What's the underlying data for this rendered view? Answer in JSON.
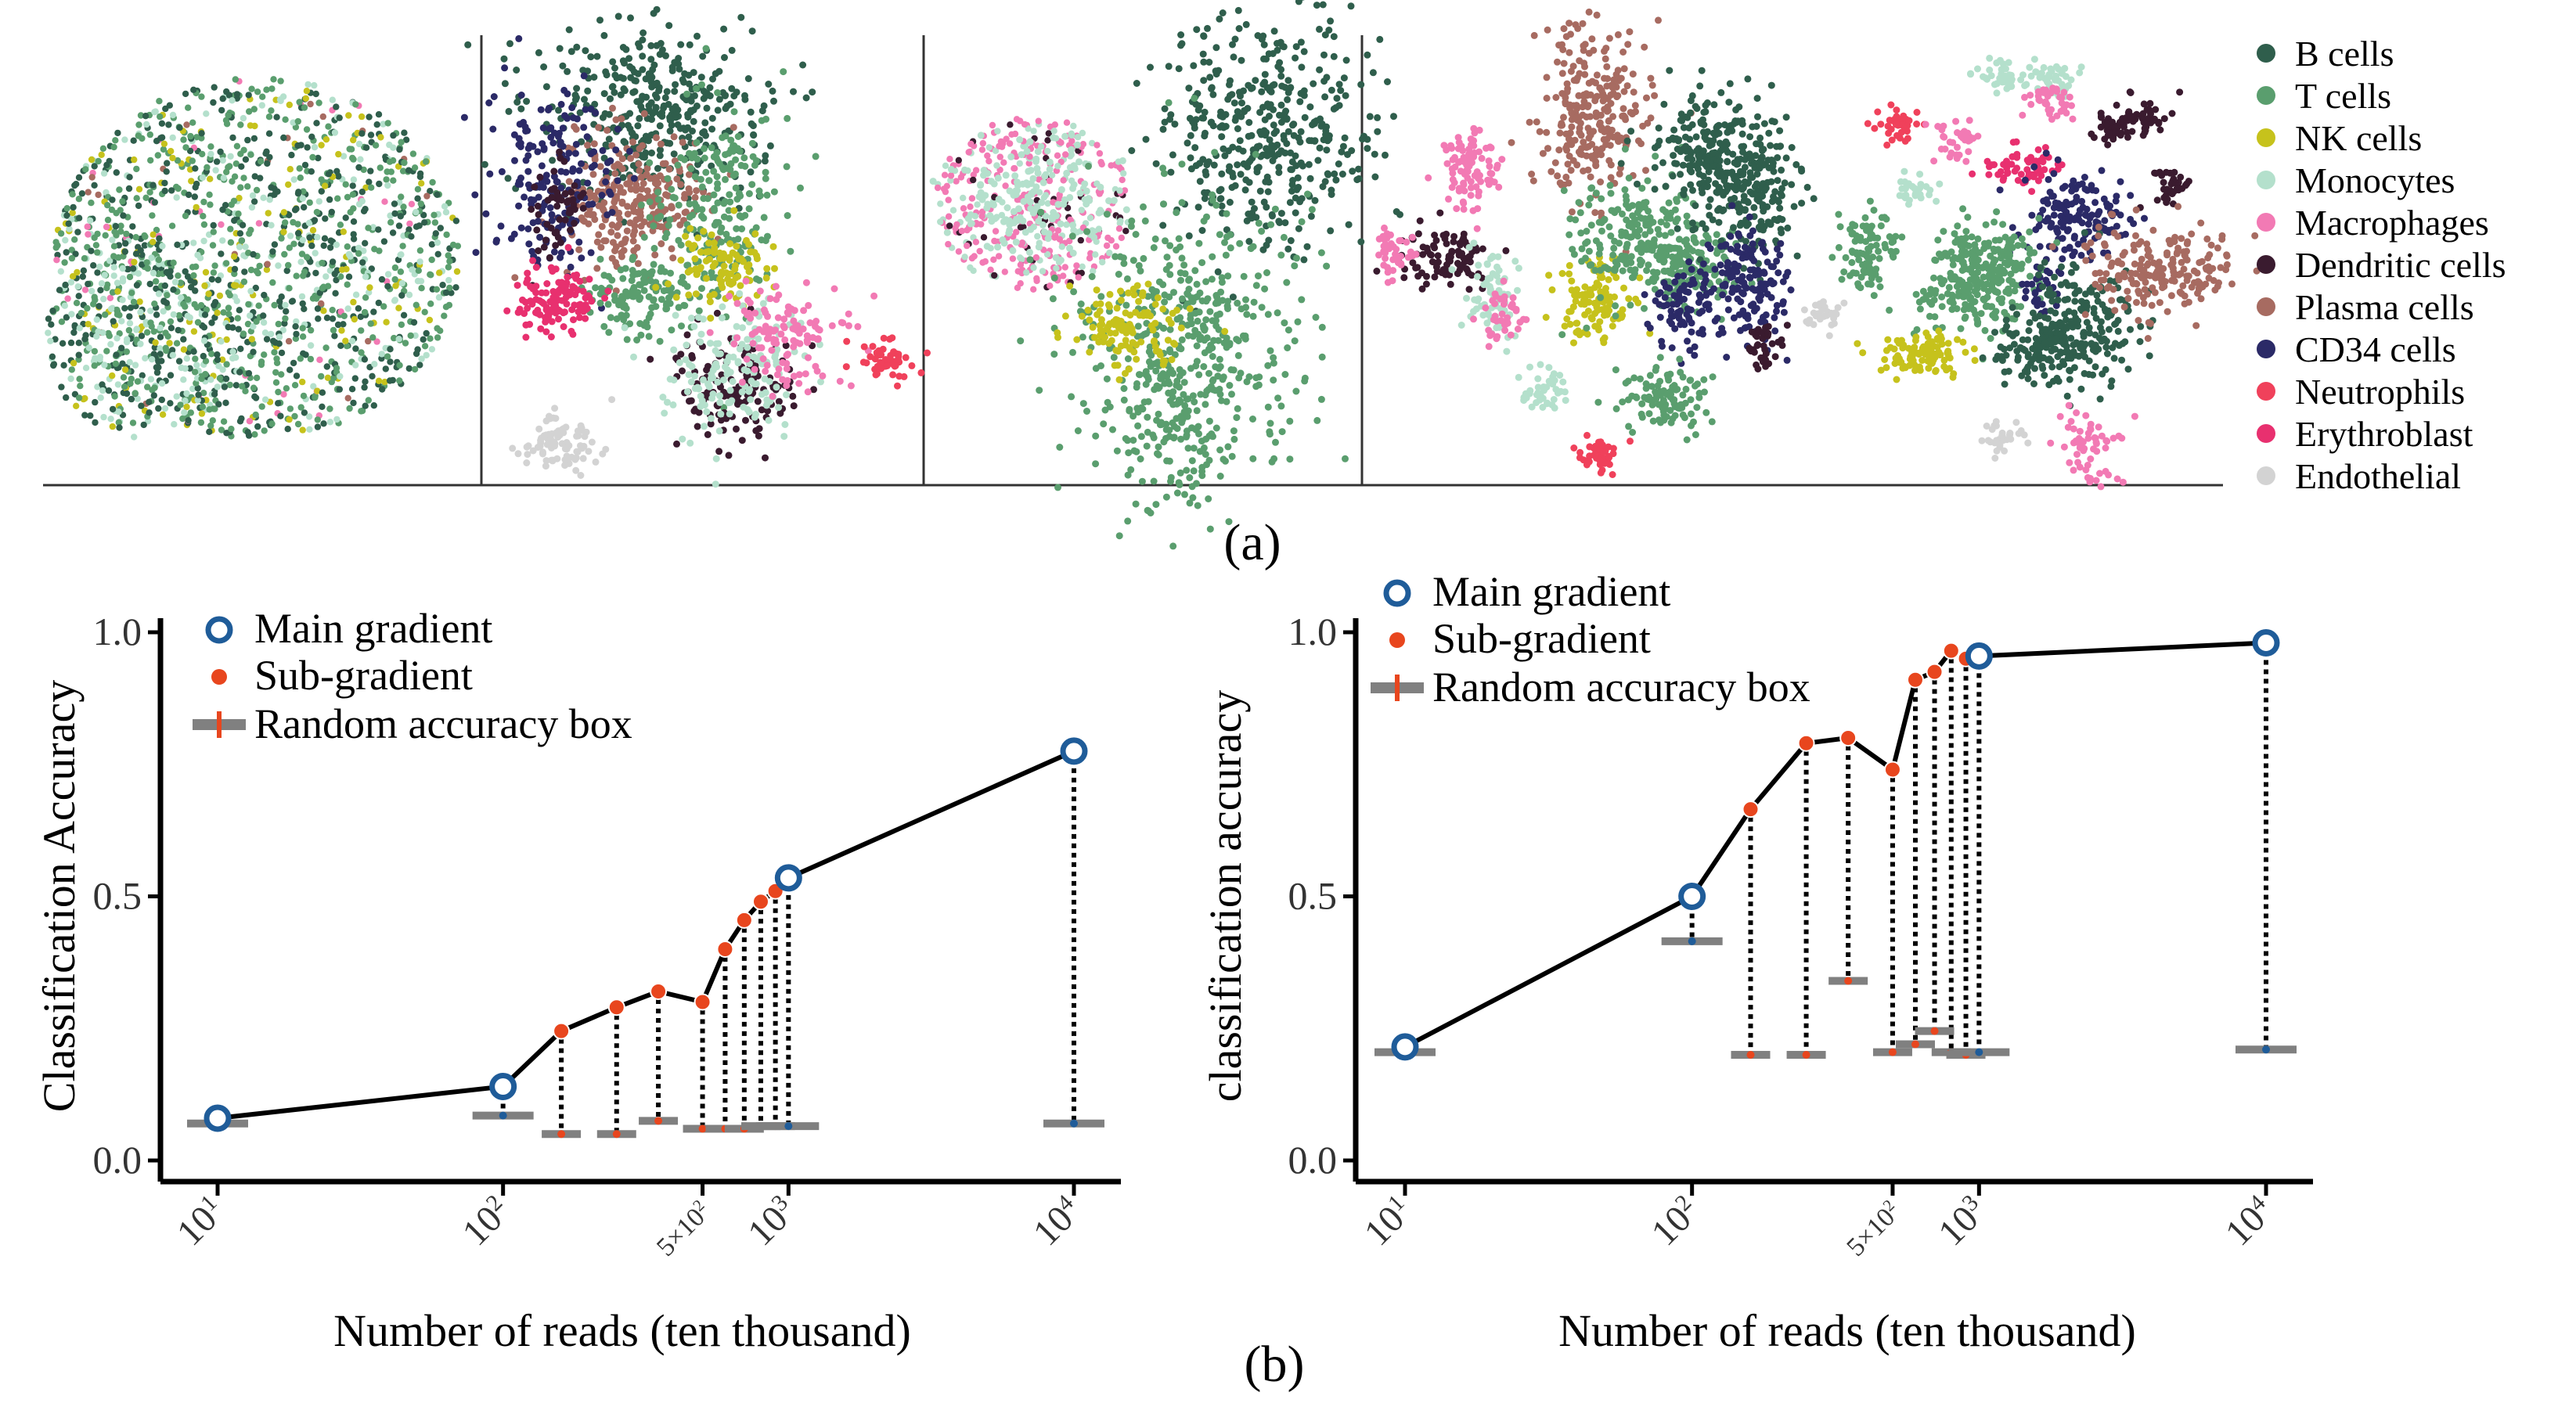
{
  "figure": {
    "label_a": "(a)",
    "label_b": "(b)"
  },
  "colors": {
    "B cells": "#2f5e4c",
    "T cells": "#5a9e6e",
    "NK cells": "#c6c21c",
    "Monocytes": "#b4e0cc",
    "Macrophages": "#f27ab4",
    "Dendritic cells": "#3a1b2f",
    "Plasma cells": "#a76b61",
    "CD34 cells": "#2b2a67",
    "Neutrophils": "#f0415b",
    "Erythroblast": "#e8306f",
    "Endothelial": "#d3d3d3",
    "main": "#1f5c99",
    "sub": "#e8461e",
    "box": "#808080",
    "line": "#000000"
  },
  "legend_a": {
    "items": [
      "B cells",
      "T cells",
      "NK cells",
      "Monocytes",
      "Macrophages",
      "Dendritic cells",
      "Plasma cells",
      "CD34 cells",
      "Neutrophils",
      "Erythroblast",
      "Endothelial"
    ]
  },
  "chart_data": [
    {
      "type": "scatter",
      "title": "(a)",
      "description_panels": 4,
      "legend": [
        "B cells",
        "T cells",
        "NK cells",
        "Monocytes",
        "Macrophages",
        "Dendritic cells",
        "Plasma cells",
        "CD34 cells",
        "Neutrophils",
        "Erythroblast",
        "Endothelial"
      ]
    },
    {
      "type": "line",
      "xlabel": "Number of reads (ten thousand)",
      "ylabel": "Classification Accuracy",
      "ylim": [
        0,
        1
      ],
      "yticks": [
        "0.0",
        "0.5",
        "1.0"
      ],
      "xscale": "log",
      "xticks": [
        {
          "value": 10,
          "label_base": "10",
          "label_sup": "1"
        },
        {
          "value": 100,
          "label_base": "10",
          "label_sup": "2"
        },
        {
          "value": 500,
          "label_base": "5×10",
          "label_sup": "2"
        },
        {
          "value": 1000,
          "label_base": "10",
          "label_sup": "3"
        },
        {
          "value": 10000,
          "label_base": "10",
          "label_sup": "4"
        }
      ],
      "legend": [
        "Main gradient",
        "Sub-gradient",
        "Random accuracy box"
      ],
      "points": [
        {
          "x": 10,
          "y": 0.08,
          "random": 0.07,
          "kind": "main"
        },
        {
          "x": 100,
          "y": 0.14,
          "random": 0.085,
          "kind": "main"
        },
        {
          "x": 160,
          "y": 0.245,
          "random": 0.05,
          "kind": "sub"
        },
        {
          "x": 250,
          "y": 0.29,
          "random": 0.05,
          "kind": "sub"
        },
        {
          "x": 350,
          "y": 0.32,
          "random": 0.075,
          "kind": "sub"
        },
        {
          "x": 500,
          "y": 0.3,
          "random": 0.06,
          "kind": "sub"
        },
        {
          "x": 600,
          "y": 0.4,
          "random": 0.06,
          "kind": "sub"
        },
        {
          "x": 700,
          "y": 0.455,
          "random": 0.06,
          "kind": "sub"
        },
        {
          "x": 800,
          "y": 0.49,
          "random": 0.065,
          "kind": "sub"
        },
        {
          "x": 900,
          "y": 0.51,
          "random": 0.065,
          "kind": "sub"
        },
        {
          "x": 1000,
          "y": 0.535,
          "random": 0.065,
          "kind": "main"
        },
        {
          "x": 10000,
          "y": 0.775,
          "random": 0.07,
          "kind": "main"
        }
      ]
    },
    {
      "type": "line",
      "xlabel": "Number of reads (ten thousand)",
      "ylabel": "classification accuracy",
      "ylim": [
        0,
        1
      ],
      "yticks": [
        "0.0",
        "0.5",
        "1.0"
      ],
      "xscale": "log",
      "xticks": [
        {
          "value": 10,
          "label_base": "10",
          "label_sup": "1"
        },
        {
          "value": 100,
          "label_base": "10",
          "label_sup": "2"
        },
        {
          "value": 500,
          "label_base": "5×10",
          "label_sup": "2"
        },
        {
          "value": 1000,
          "label_base": "10",
          "label_sup": "3"
        },
        {
          "value": 10000,
          "label_base": "10",
          "label_sup": "4"
        }
      ],
      "legend": [
        "Main gradient",
        "Sub-gradient",
        "Random accuracy box"
      ],
      "points": [
        {
          "x": 10,
          "y": 0.215,
          "random": 0.205,
          "kind": "main"
        },
        {
          "x": 100,
          "y": 0.5,
          "random": 0.415,
          "kind": "main"
        },
        {
          "x": 160,
          "y": 0.665,
          "random": 0.2,
          "kind": "sub"
        },
        {
          "x": 250,
          "y": 0.79,
          "random": 0.2,
          "kind": "sub"
        },
        {
          "x": 350,
          "y": 0.8,
          "random": 0.34,
          "kind": "sub"
        },
        {
          "x": 500,
          "y": 0.74,
          "random": 0.205,
          "kind": "sub"
        },
        {
          "x": 600,
          "y": 0.91,
          "random": 0.22,
          "kind": "sub"
        },
        {
          "x": 700,
          "y": 0.925,
          "random": 0.245,
          "kind": "sub"
        },
        {
          "x": 800,
          "y": 0.965,
          "random": 0.205,
          "kind": "sub"
        },
        {
          "x": 900,
          "y": 0.95,
          "random": 0.2,
          "kind": "sub"
        },
        {
          "x": 1000,
          "y": 0.955,
          "random": 0.205,
          "kind": "main"
        },
        {
          "x": 10000,
          "y": 0.98,
          "random": 0.21,
          "kind": "main"
        }
      ]
    }
  ]
}
